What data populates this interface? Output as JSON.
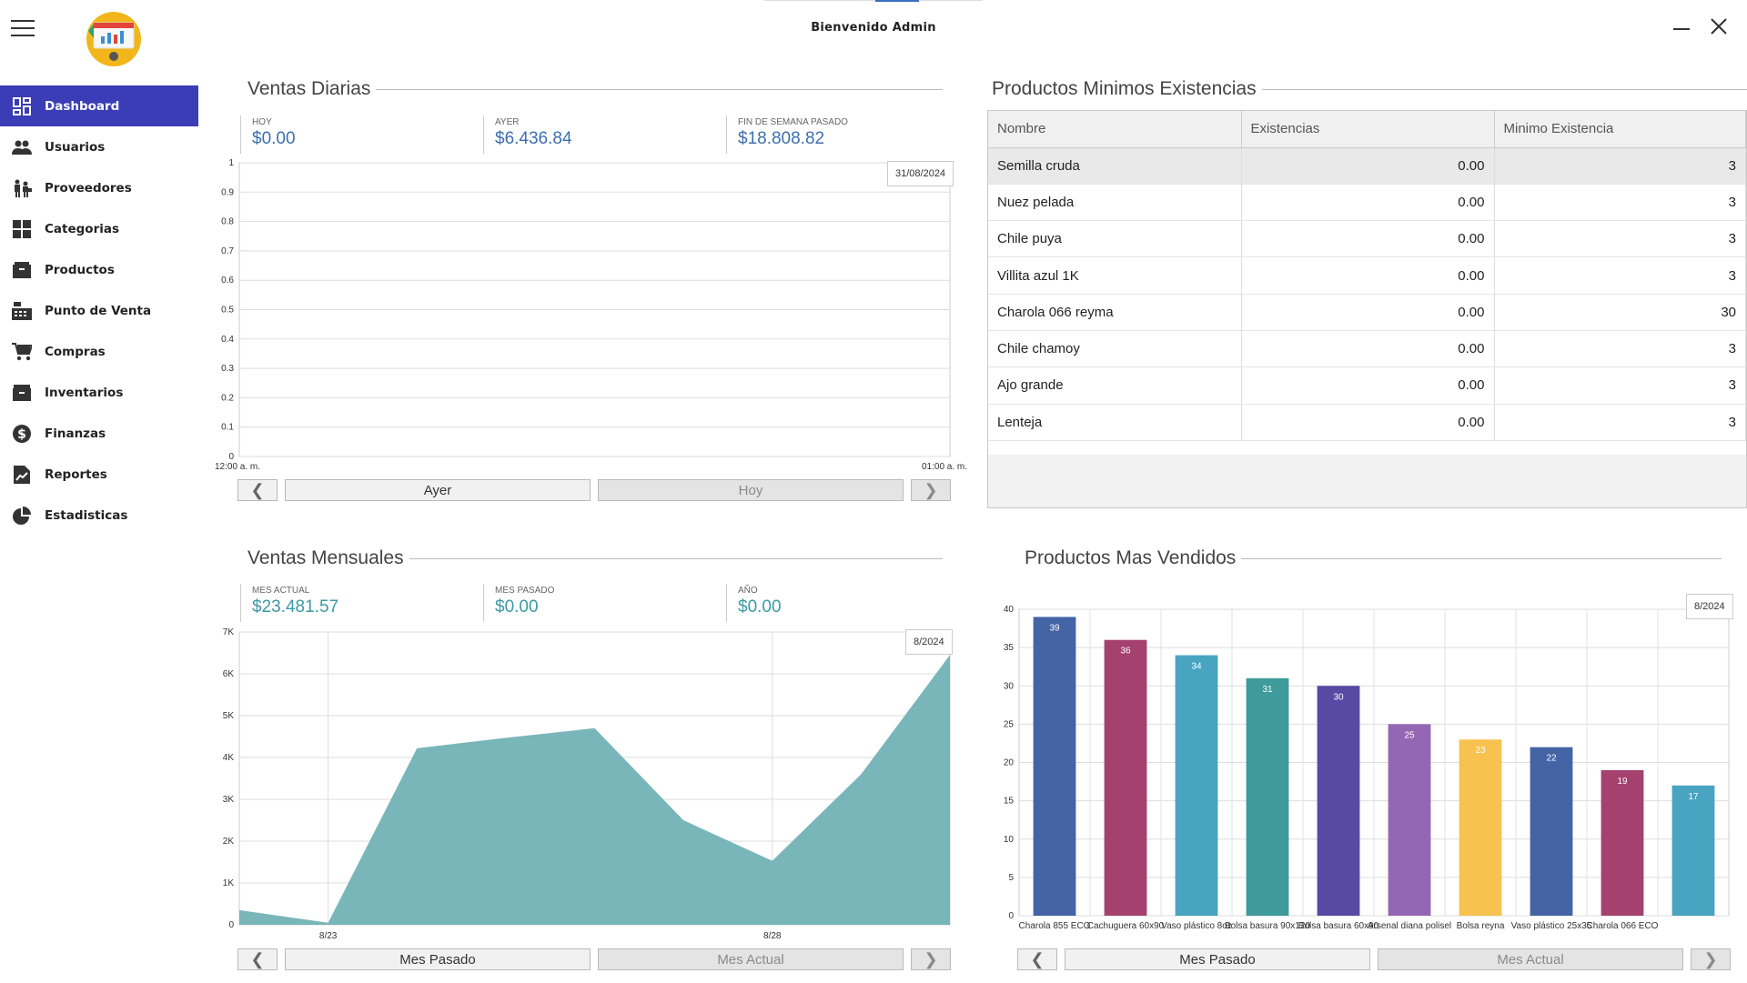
{
  "header": {
    "welcome": "Bienvenido Admin"
  },
  "sidebar": {
    "items": [
      {
        "label": "Dashboard",
        "icon": "dashboard-icon",
        "active": true
      },
      {
        "label": "Usuarios",
        "icon": "users-icon"
      },
      {
        "label": "Proveedores",
        "icon": "suppliers-icon"
      },
      {
        "label": "Categorias",
        "icon": "categories-icon"
      },
      {
        "label": "Productos",
        "icon": "products-icon"
      },
      {
        "label": "Punto de Venta",
        "icon": "cash-register-icon"
      },
      {
        "label": "Compras",
        "icon": "cart-icon"
      },
      {
        "label": "Inventarios",
        "icon": "inventory-icon"
      },
      {
        "label": "Finanzas",
        "icon": "money-icon"
      },
      {
        "label": "Reportes",
        "icon": "report-icon"
      },
      {
        "label": "Estadisticas",
        "icon": "pie-chart-icon"
      }
    ]
  },
  "colors": {
    "accent": "#3a3db5",
    "kpi_daily": "#3d6fb0",
    "kpi_monthly": "#3b9aa5",
    "area_fill": "#6aaeb3"
  },
  "daily_sales": {
    "title": "Ventas Diarias",
    "kpis": [
      {
        "label": "HOY",
        "value": "$0.00"
      },
      {
        "label": "AYER",
        "value": "$6.436.84"
      },
      {
        "label": "FIN DE SEMANA PASADO",
        "value": "$18.808.82"
      }
    ],
    "date_badge": "31/08/2024",
    "nav": {
      "prev": "❮",
      "left": "Ayer",
      "right": "Hoy",
      "next": "❯"
    }
  },
  "min_stock": {
    "title": "Productos Minimos Existencias",
    "columns": [
      "Nombre",
      "Existencias",
      "Minimo Existencia"
    ],
    "rows": [
      [
        "Semilla cruda",
        "0.00",
        "3"
      ],
      [
        "Nuez pelada",
        "0.00",
        "3"
      ],
      [
        "Chile puya",
        "0.00",
        "3"
      ],
      [
        "Villita azul 1K",
        "0.00",
        "3"
      ],
      [
        "Charola 066 reyma",
        "0.00",
        "30"
      ],
      [
        "Chile chamoy",
        "0.00",
        "3"
      ],
      [
        "Ajo grande",
        "0.00",
        "3"
      ],
      [
        "Lenteja",
        "0.00",
        "3"
      ]
    ]
  },
  "monthly_sales": {
    "title": "Ventas Mensuales",
    "kpis": [
      {
        "label": "MES ACTUAL",
        "value": "$23.481.57"
      },
      {
        "label": "MES PASADO",
        "value": "$0.00"
      },
      {
        "label": "AÑO",
        "value": "$0.00"
      }
    ],
    "date_badge": "8/2024",
    "nav": {
      "prev": "❮",
      "left": "Mes Pasado",
      "right": "Mes Actual",
      "next": "❯"
    }
  },
  "top_products": {
    "title": "Productos Mas Vendidos",
    "date_badge": "8/2024",
    "nav": {
      "prev": "❮",
      "left": "Mes Pasado",
      "right": "Mes Actual",
      "next": "❯"
    }
  },
  "chart_data": [
    {
      "type": "line",
      "x_tick_labels": [
        "12:00 a. m.",
        "01:00 a. m."
      ],
      "y_ticks": [
        0,
        0.1,
        0.2,
        0.3,
        0.4,
        0.5,
        0.6,
        0.7,
        0.8,
        0.9,
        1
      ],
      "ylim": [
        0,
        1
      ],
      "series": [],
      "grid": true
    },
    {
      "type": "area",
      "x": [
        22,
        23,
        24,
        25,
        26,
        27,
        28,
        29,
        30
      ],
      "x_tick_labels": [
        "8/23",
        "8/28"
      ],
      "values": [
        350,
        50,
        4220,
        4470,
        4700,
        2500,
        1530,
        3600,
        6450
      ],
      "y_ticks": [
        "0",
        "1K",
        "2K",
        "3K",
        "4K",
        "5K",
        "6K",
        "7K"
      ],
      "ylim": [
        0,
        7000
      ],
      "grid": true
    },
    {
      "type": "bar",
      "categories": [
        "Charola 855 ECO",
        "Cachuguera 60x90",
        "Vaso plástico 8oz",
        "Bolsa basura 90x120",
        "Bolsa basura 60x90",
        "Arsenal diana polisel",
        "Bolsa reyna",
        "Vaso plástico 25x35",
        "Charola 066 ECO",
        ""
      ],
      "x_tick_labels": [
        "Charola 855 ECO",
        "Cachuguera 60x90",
        "Vaso plástico 8oz",
        "Bolsa basura 90x120",
        "Bolsa basura 60x90",
        "Arsenal diana polisel",
        "Bolsa reyna",
        "Vaso plástico 25x35",
        "Charola 066 ECO",
        ""
      ],
      "values": [
        39,
        36,
        34,
        31,
        30,
        25,
        23,
        22,
        19,
        17
      ],
      "colors": [
        "#4464a6",
        "#a4416f",
        "#48a4c0",
        "#3f9b9b",
        "#5849a4",
        "#9566b3",
        "#f7c24f",
        "#4464a6",
        "#a4416f",
        "#48a4c0"
      ],
      "ylim": [
        0,
        40
      ],
      "y_ticks": [
        0,
        5,
        10,
        15,
        20,
        25,
        30,
        35,
        40
      ],
      "grid": true
    }
  ]
}
